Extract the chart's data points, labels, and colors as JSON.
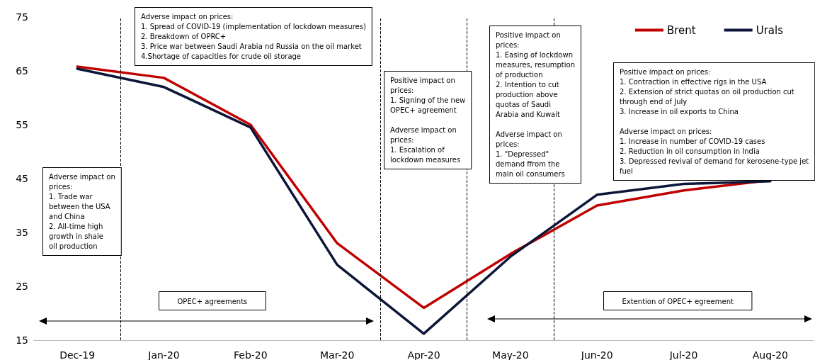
{
  "chart_data": {
    "type": "line",
    "categories": [
      "Dec-19",
      "Jan-20",
      "Feb-20",
      "Mar-20",
      "Apr-20",
      "May-20",
      "Jun-20",
      "Jul-20",
      "Aug-20"
    ],
    "series": [
      {
        "name": "Brent",
        "color": "#c00000",
        "values": [
          65.8,
          63.7,
          55,
          33,
          21,
          31,
          40,
          42.8,
          44.7
        ]
      },
      {
        "name": "Urals",
        "color": "#0c1638",
        "values": [
          65.4,
          62,
          54.5,
          29,
          16.2,
          30.5,
          42,
          44,
          44.5
        ]
      }
    ],
    "ylim": [
      15,
      75
    ],
    "yticks": [
      15,
      25,
      35,
      45,
      55,
      65,
      75
    ],
    "grid": false,
    "legend": "top right",
    "marker": "none",
    "line_style": "solid",
    "annotations": [
      "Adverse impact on prices:\n1. Spread of COVID-19 (implementation of lockdown measures)\n2. Breakdown of OPRC+\n3. Price war between Saudi Arabia nd Russia on the oil market\n4.Shortage of capacities for crude oil storage",
      "Adverse impact on\nprices:\n1. Trade war\nbetween the USA\nand China\n2. All-time high\ngrowth in shale\noil production",
      "Positive impact on\nprices:\n1. Signing of the new\nOPEC+ agreement\n\nAdverse impact on\nprices:\n1. Escalation of\nlockdown measures",
      "Positive impact on\nprices:\n1. Easing of lockdown\nmeasures, resumption\nof production\n2. Intention to cut\nproduction above\nquotas of Saudi\nArabia and Kuwait\n\nAdverse impact on\nprices:\n1. \"Depressed\"\ndemand ffrom the\nmain oil consumers",
      "Positive impact on prices:\n1. Contraction in effective rigs in the USA\n2. Extension of strict quotas on oil production cut\nthrough end of July\n3. Increase in oil exports to China\n\nAdverse impact on prices:\n1. Increase in number of COVID-19 cases\n2. Reduction in oil consumption in India\n3. Depressed revival of demand for kerosene-type jet\nfuel",
      "OPEC+ agreements",
      "Extention of OPEC+ egreement"
    ]
  }
}
